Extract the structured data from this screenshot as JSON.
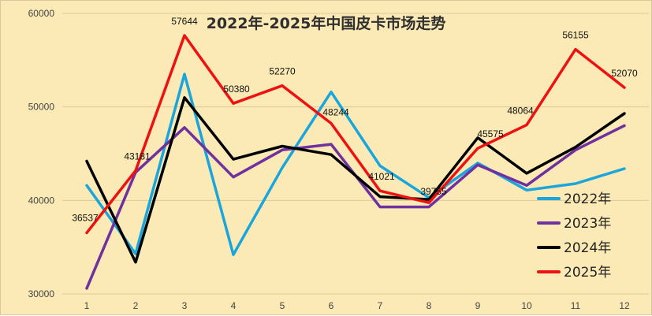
{
  "chart_data": {
    "type": "line",
    "title": "2022年-2025年中国皮卡市场走势",
    "xlabel": "",
    "ylabel": "",
    "categories": [
      "1",
      "2",
      "3",
      "4",
      "5",
      "6",
      "7",
      "8",
      "9",
      "10",
      "11",
      "12"
    ],
    "ylim": [
      30000,
      60000
    ],
    "yticks": [
      "30000",
      "40000",
      "50000",
      "60000"
    ],
    "grid": true,
    "legend_position": "bottom-right",
    "series": [
      {
        "name": "2022年",
        "color": "#1aa6dc",
        "values": [
          41600,
          34300,
          53500,
          34200,
          43500,
          51600,
          43700,
          40300,
          44000,
          41100,
          41800,
          43400
        ],
        "labels": []
      },
      {
        "name": "2023年",
        "color": "#7030a0",
        "values": [
          30600,
          43000,
          47800,
          42500,
          45400,
          46000,
          39300,
          39300,
          43800,
          41600,
          45400,
          48000
        ],
        "labels": []
      },
      {
        "name": "2024年",
        "color": "#000000",
        "values": [
          44200,
          33400,
          51000,
          44400,
          45800,
          44900,
          40400,
          40100,
          46700,
          42900,
          45700,
          49300
        ],
        "labels": []
      },
      {
        "name": "2025年",
        "color": "#ee1111",
        "values": [
          36537,
          43181,
          57644,
          50380,
          52270,
          48244,
          41021,
          39755,
          45575,
          48064,
          56155,
          52070
        ],
        "labels": [
          "36537",
          "43181",
          "57644",
          "50380",
          "52270",
          "48244",
          "41021",
          "39755",
          "45575",
          "48064",
          "56155",
          "52070"
        ]
      }
    ]
  }
}
